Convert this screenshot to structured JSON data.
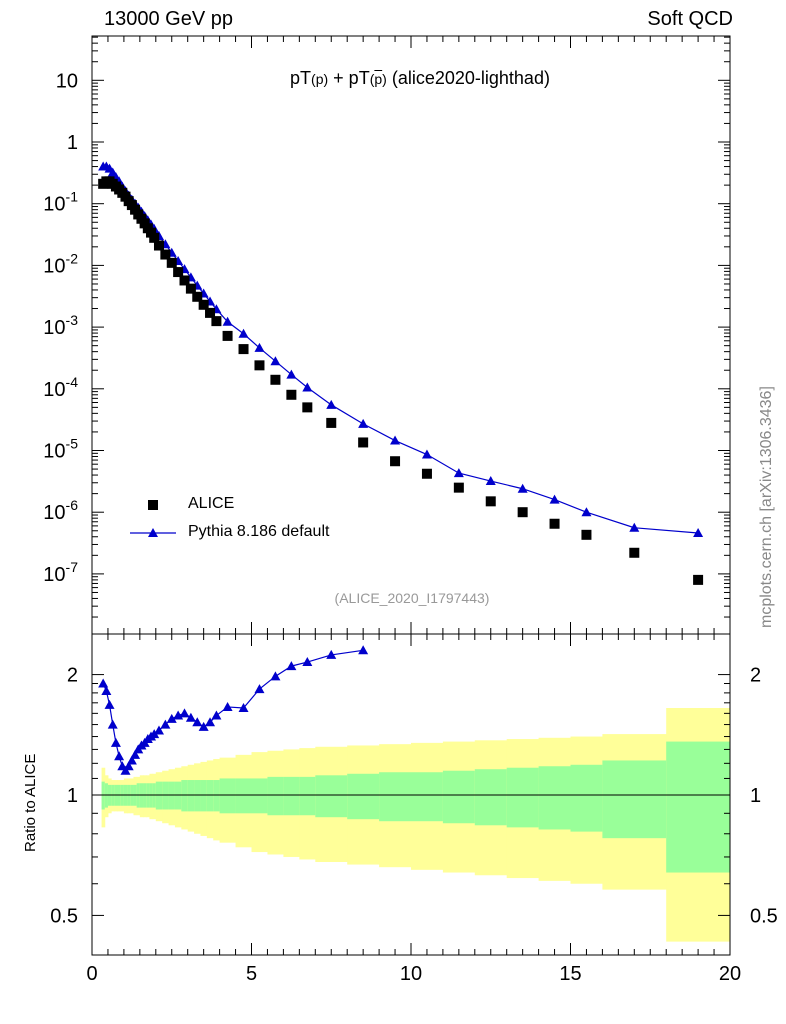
{
  "header": {
    "left": "13000 GeV pp",
    "right": "Soft QCD",
    "side_label": "mcplots.cern.ch [arXiv:1306.3436]"
  },
  "plot_title": {
    "pt": "pT",
    "p": "(p)",
    "plus": " + pT",
    "pbar": "(",
    "pbar_letter": "p",
    "pbar_close": ")",
    "suffix": " (alice2020-lighthad)"
  },
  "watermark": "(ALICE_2020_I1797443)",
  "legend": {
    "data_label": "ALICE",
    "mc_label": "Pythia 8.186 default"
  },
  "ratio_ylabel": "Ratio to ALICE",
  "colors": {
    "data": "#000000",
    "mc": "#0000cc",
    "band_inner": "#99ff99",
    "band_outer": "#ffff99"
  },
  "chart_data": [
    {
      "type": "scatter",
      "scale": "log",
      "xlim": [
        0,
        20
      ],
      "ylim": [
        1e-08,
        50
      ],
      "ytick_labels": [
        "10",
        "1",
        "10^-1",
        "10^-2",
        "10^-3",
        "10^-4",
        "10^-5",
        "10^-6",
        "10^-7"
      ],
      "ytick_values": [
        10,
        1,
        0.1,
        0.01,
        0.001,
        0.0001,
        1e-05,
        1e-06,
        1e-07
      ],
      "series": [
        {
          "name": "ALICE",
          "marker": "square",
          "x": [
            0.35,
            0.45,
            0.55,
            0.65,
            0.75,
            0.85,
            0.95,
            1.05,
            1.15,
            1.25,
            1.35,
            1.45,
            1.55,
            1.65,
            1.75,
            1.85,
            1.95,
            2.1,
            2.3,
            2.5,
            2.7,
            2.9,
            3.1,
            3.3,
            3.5,
            3.7,
            3.9,
            4.25,
            4.75,
            5.25,
            5.75,
            6.25,
            6.75,
            7.5,
            8.5,
            9.5,
            10.5,
            11.5,
            12.5,
            13.5,
            14.5,
            15.5,
            17.0,
            19.0
          ],
          "y": [
            0.21,
            0.23,
            0.23,
            0.21,
            0.19,
            0.17,
            0.15,
            0.13,
            0.11,
            0.095,
            0.08,
            0.067,
            0.057,
            0.048,
            0.04,
            0.034,
            0.028,
            0.021,
            0.015,
            0.011,
            0.0078,
            0.0057,
            0.0042,
            0.0031,
            0.0023,
            0.0017,
            0.00125,
            0.00072,
            0.00044,
            0.00024,
            0.00014,
            8e-05,
            5e-05,
            2.8e-05,
            1.35e-05,
            6.7e-06,
            4.2e-06,
            2.5e-06,
            1.5e-06,
            1e-06,
            6.5e-07,
            4.3e-07,
            2.2e-07,
            8e-08
          ]
        },
        {
          "name": "Pythia 8.186 default",
          "marker": "triangle",
          "x": [
            0.35,
            0.45,
            0.55,
            0.65,
            0.75,
            0.85,
            0.95,
            1.05,
            1.15,
            1.25,
            1.35,
            1.45,
            1.55,
            1.65,
            1.75,
            1.85,
            1.95,
            2.1,
            2.3,
            2.5,
            2.7,
            2.9,
            3.1,
            3.3,
            3.5,
            3.7,
            3.9,
            4.25,
            4.75,
            5.25,
            5.75,
            6.25,
            6.75,
            7.5,
            8.5,
            9.5,
            10.5,
            11.5,
            12.5,
            13.5,
            14.5,
            15.5,
            17.0,
            19.0
          ],
          "y": [
            0.4,
            0.4,
            0.37,
            0.32,
            0.27,
            0.23,
            0.19,
            0.16,
            0.135,
            0.116,
            0.1,
            0.086,
            0.074,
            0.063,
            0.054,
            0.046,
            0.039,
            0.03,
            0.022,
            0.016,
            0.0118,
            0.0087,
            0.0064,
            0.0047,
            0.0035,
            0.0026,
            0.00195,
            0.00122,
            0.00078,
            0.00046,
            0.00028,
            0.00017,
            0.000105,
            5.5e-05,
            2.7e-05,
            1.45e-05,
            8.6e-06,
            4.3e-06,
            3.2e-06,
            2.4e-06,
            1.6e-06,
            1e-06,
            5.6e-07,
            4.6e-07
          ]
        }
      ]
    },
    {
      "type": "line",
      "xlabel": "",
      "ylabel": "Ratio to ALICE",
      "xlim": [
        0,
        20
      ],
      "ylim": [
        0.42,
        2.35
      ],
      "xtick_labels": [
        "0",
        "5",
        "10",
        "15",
        "20"
      ],
      "ytick_labels": [
        "0.5",
        "1",
        "2"
      ],
      "ytick_values": [
        0.5,
        1,
        2
      ],
      "reference_line": 1,
      "series": [
        {
          "name": "Pythia 8.186 default",
          "x": [
            0.35,
            0.45,
            0.55,
            0.65,
            0.75,
            0.85,
            0.95,
            1.05,
            1.15,
            1.25,
            1.35,
            1.45,
            1.55,
            1.65,
            1.75,
            1.85,
            1.95,
            2.1,
            2.3,
            2.5,
            2.7,
            2.9,
            3.1,
            3.3,
            3.5,
            3.7,
            3.9,
            4.25,
            4.75,
            5.25,
            5.75,
            6.25,
            6.75,
            7.5,
            8.5
          ],
          "values": [
            1.9,
            1.82,
            1.68,
            1.5,
            1.35,
            1.25,
            1.18,
            1.15,
            1.18,
            1.22,
            1.26,
            1.3,
            1.33,
            1.35,
            1.38,
            1.4,
            1.42,
            1.45,
            1.5,
            1.55,
            1.58,
            1.6,
            1.56,
            1.52,
            1.48,
            1.52,
            1.58,
            1.66,
            1.65,
            1.84,
            1.98,
            2.1,
            2.15,
            2.24,
            2.3
          ]
        }
      ],
      "bands": {
        "edges": [
          0.3,
          0.4,
          0.5,
          0.6,
          0.7,
          0.8,
          0.9,
          1.0,
          1.1,
          1.2,
          1.3,
          1.4,
          1.5,
          1.6,
          1.7,
          1.8,
          1.9,
          2.0,
          2.2,
          2.4,
          2.6,
          2.8,
          3.0,
          3.2,
          3.4,
          3.6,
          3.8,
          4.0,
          4.5,
          5.0,
          5.5,
          6.0,
          6.5,
          7.0,
          8.0,
          9.0,
          10.0,
          11.0,
          12.0,
          13.0,
          14.0,
          15.0,
          16.0,
          18.0,
          20.0
        ],
        "inner_halfwidth": [
          0.08,
          0.07,
          0.06,
          0.06,
          0.06,
          0.06,
          0.06,
          0.06,
          0.06,
          0.06,
          0.06,
          0.07,
          0.07,
          0.07,
          0.07,
          0.07,
          0.07,
          0.08,
          0.08,
          0.08,
          0.08,
          0.09,
          0.09,
          0.09,
          0.09,
          0.09,
          0.09,
          0.1,
          0.1,
          0.1,
          0.11,
          0.11,
          0.11,
          0.12,
          0.13,
          0.14,
          0.14,
          0.15,
          0.16,
          0.17,
          0.18,
          0.19,
          0.22,
          0.36
        ],
        "outer_halfwidth": [
          0.17,
          0.12,
          0.1,
          0.09,
          0.09,
          0.09,
          0.09,
          0.1,
          0.1,
          0.1,
          0.11,
          0.11,
          0.12,
          0.12,
          0.12,
          0.13,
          0.13,
          0.14,
          0.15,
          0.16,
          0.17,
          0.18,
          0.19,
          0.2,
          0.21,
          0.22,
          0.23,
          0.24,
          0.26,
          0.28,
          0.29,
          0.3,
          0.31,
          0.32,
          0.33,
          0.34,
          0.35,
          0.36,
          0.37,
          0.38,
          0.39,
          0.4,
          0.42,
          0.65
        ]
      }
    }
  ]
}
